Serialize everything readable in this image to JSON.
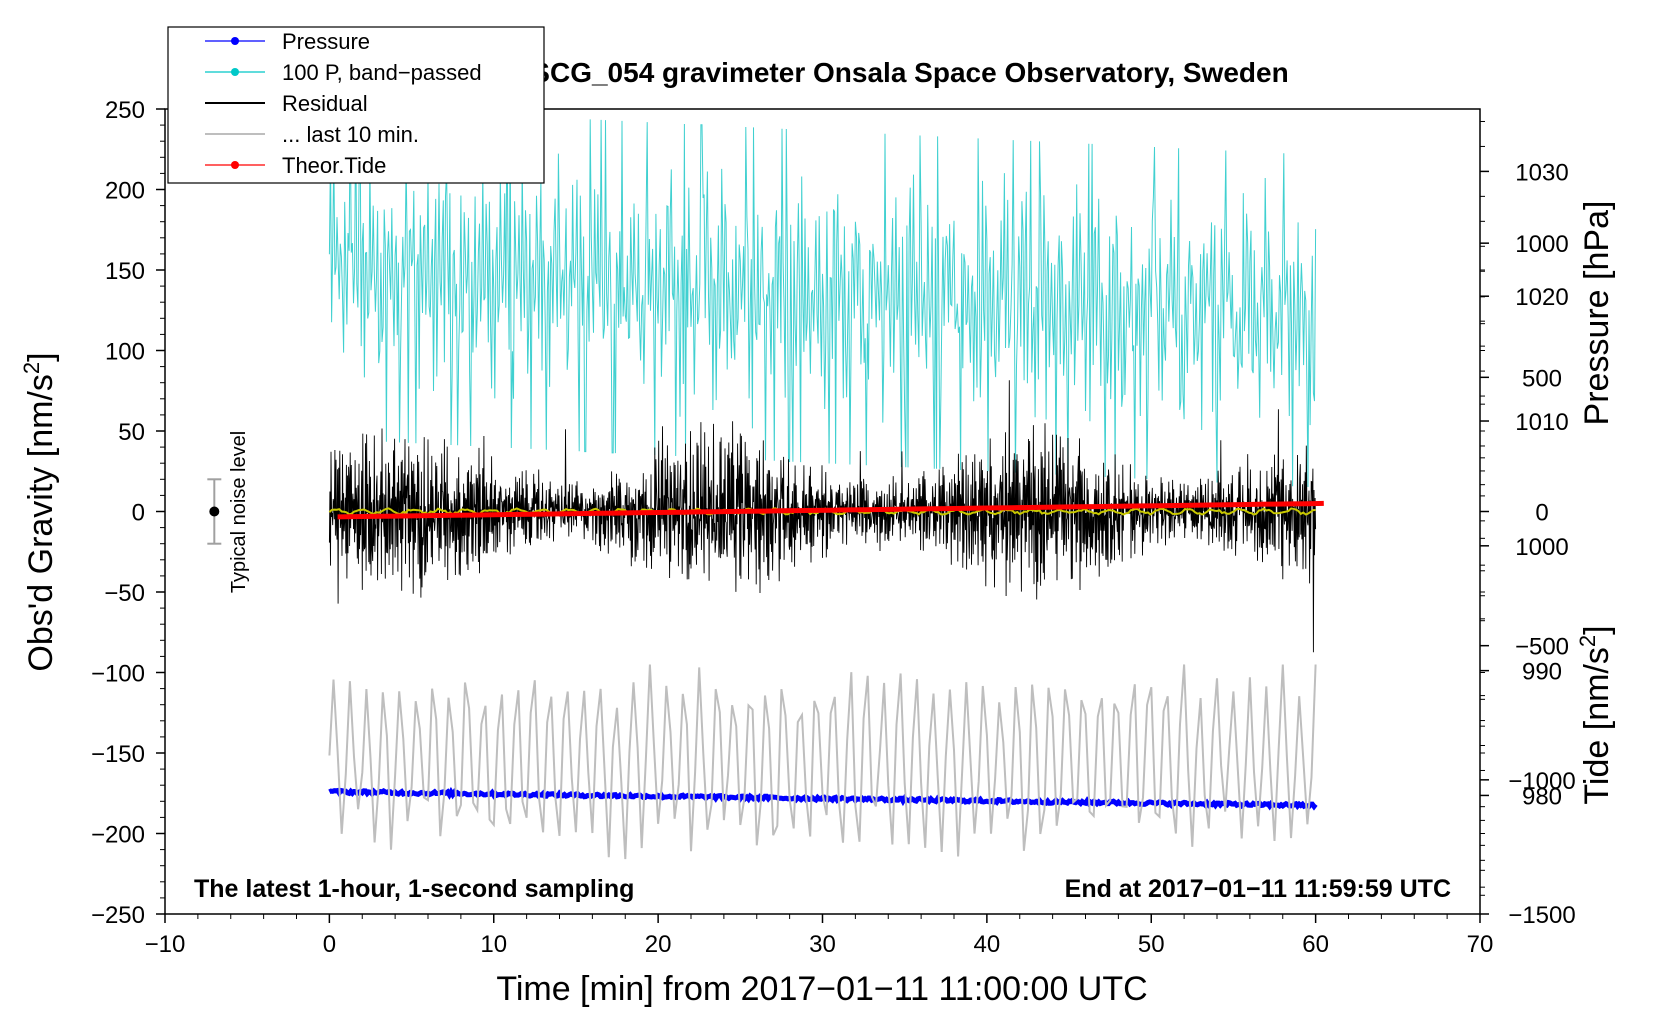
{
  "chart_data": {
    "type": "line",
    "title": "SCG_054 gravimeter Onsala Space Observatory, Sweden",
    "xlabel": "Time [min] from 2017−01−11 11:00:00 UTC",
    "ylabel_main": "Obs'd Gravity [nm/s",
    "ylabel_main_sup": "2",
    "ylabel_main_suffix": "]",
    "ylabel_pressure": "Pressure [hPa]",
    "ylabel_tide": "Tide [nm/s",
    "ylabel_tide_sup": "2",
    "ylabel_tide_suffix": "]",
    "xlim": [
      -10,
      70
    ],
    "ylim": [
      -250,
      250
    ],
    "pressure_lim": [
      970.5,
      1035
    ],
    "tide_lim": [
      -1500,
      1500
    ],
    "x_ticks": [
      -10,
      0,
      10,
      20,
      30,
      40,
      50,
      60,
      70
    ],
    "x_tick_labels": [
      "−10",
      "0",
      "10",
      "20",
      "30",
      "40",
      "50",
      "60",
      "70"
    ],
    "y_ticks": [
      250,
      200,
      150,
      100,
      50,
      0,
      -50,
      -100,
      -150,
      -200,
      -250
    ],
    "y_tick_labels": [
      "250",
      "200",
      "150",
      "100",
      "50",
      "0",
      "−50",
      "−100",
      "−150",
      "−200",
      "−250"
    ],
    "pressure_ticks": [
      1030,
      1020,
      1010,
      1000,
      990,
      980
    ],
    "pressure_tick_labels": [
      "1030",
      "1020",
      "1010",
      "1000",
      "990",
      "980"
    ],
    "tide_ticks": [
      1000,
      500,
      0,
      -500,
      -1000,
      -1500
    ],
    "tide_tick_labels": [
      "1000",
      "500",
      "0",
      "−500",
      "−1000",
      "−1500"
    ],
    "bottom_left_note": "The latest 1-hour, 1-second sampling",
    "bottom_right_note": "End at 2017−01−11 11:59:59 UTC",
    "noise_label": "Typical noise level",
    "noise_bar": {
      "x": -7,
      "center": 0,
      "half_range": 20
    },
    "legend": [
      {
        "label": "Pressure",
        "color": "#0000ff",
        "marker": true
      },
      {
        "label": "100 P, band−passed",
        "color": "#00c8c8",
        "marker": true
      },
      {
        "label": "Residual",
        "color": "#000000",
        "marker": false
      },
      {
        "label": "... last 10 min.",
        "color": "#bebebe",
        "marker": false
      },
      {
        "label": "Theor.Tide",
        "color": "#ff0000",
        "marker": true
      }
    ],
    "series": [
      {
        "name": "Pressure",
        "axis": "pressure",
        "color": "#0000ff",
        "x_range": [
          0,
          60
        ],
        "start_value": 980.3,
        "end_value": 979.2
      },
      {
        "name": "100 P, band-passed",
        "axis": "main",
        "color": "#40d0d0",
        "x_range": [
          0,
          60
        ],
        "baseline_start": 150,
        "baseline_end": 120,
        "amplitude": 70
      },
      {
        "name": "Residual",
        "axis": "main",
        "color": "#000000",
        "x_range": [
          0,
          60
        ],
        "baseline": 0,
        "amplitude": 45
      },
      {
        "name": "Residual mean",
        "axis": "main",
        "color": "#c8c800",
        "x_range": [
          0,
          60
        ],
        "baseline": 0
      },
      {
        "name": "... last 10 min.",
        "axis": "main",
        "color": "#bebebe",
        "x_range": [
          0,
          60
        ],
        "baseline": -155,
        "amplitude": 50
      },
      {
        "name": "Theor.Tide",
        "axis": "tide",
        "color": "#ff0000",
        "x_range": [
          0.5,
          60.5
        ],
        "start_value": -20,
        "end_value": 30
      }
    ]
  }
}
